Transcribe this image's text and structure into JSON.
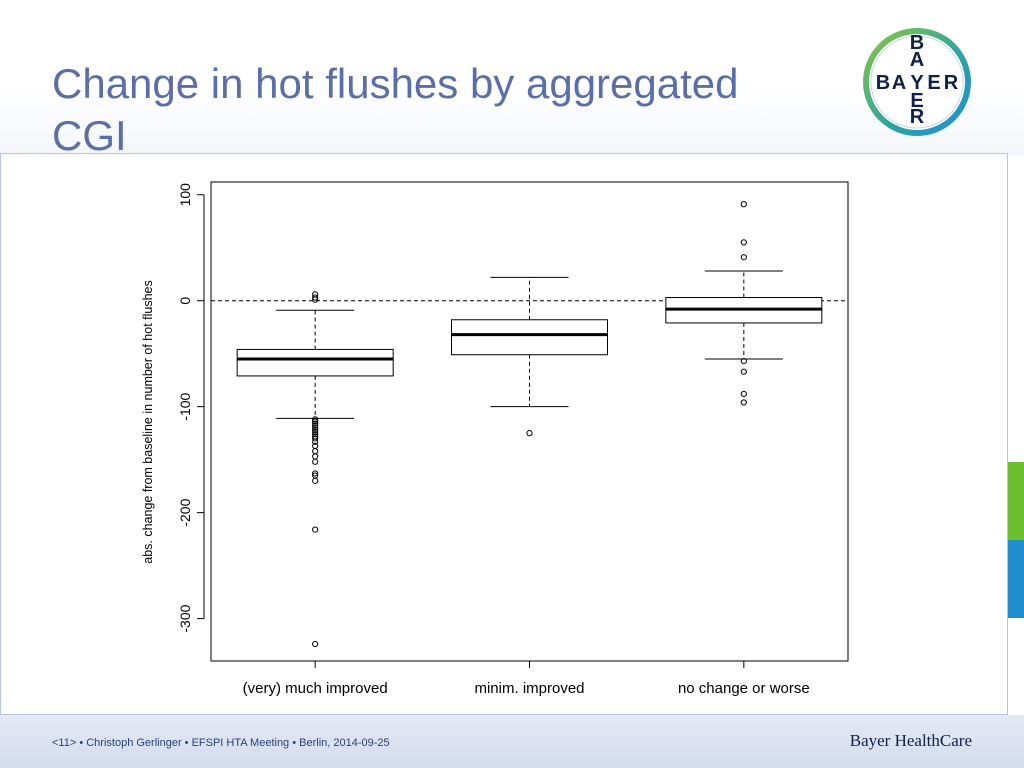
{
  "slide": {
    "title_lines": [
      "Change in hot flushes by aggregated",
      "CGI"
    ],
    "logo": {
      "letters_horizontal": "BAYER",
      "letters_vertical": "BAYER",
      "ring_colors": [
        "#8cc63f",
        "#1e8fcf"
      ]
    },
    "footer": {
      "citation": "<11> • Christoph Gerlinger • EFSPI HTA Meeting • Berlin, 2014-09-25",
      "brand": "Bayer HealthCare"
    },
    "accent_colors": {
      "title": "#5a6ea8",
      "green": "#6bbf2c",
      "blue": "#1f8ccc"
    }
  },
  "chart_data": {
    "type": "boxplot",
    "title": "",
    "xlabel": "",
    "ylabel": "abs. change from baseline in number of hot flushes",
    "ylim": [
      -340,
      112
    ],
    "yticks": [
      100,
      0,
      -100,
      -200,
      -300
    ],
    "reference_line": {
      "y": 0,
      "style": "dashed"
    },
    "categories": [
      "(very) much improved",
      "minim. improved",
      "no change or worse"
    ],
    "boxes": [
      {
        "category": "(very) much improved",
        "whisker_low": -111,
        "q1": -71,
        "median": -55,
        "q3": -46,
        "whisker_high": -9,
        "outliers": [
          6,
          3,
          1,
          -112,
          -114,
          -116,
          -118,
          -120,
          -122,
          -124,
          -126,
          -128,
          -130,
          -133,
          -137,
          -142,
          -147,
          -152,
          -163,
          -165,
          -170,
          -216,
          -324
        ]
      },
      {
        "category": "minim. improved",
        "whisker_low": -100,
        "q1": -51,
        "median": -32,
        "q3": -18,
        "whisker_high": 22,
        "outliers": [
          -125
        ]
      },
      {
        "category": "no change or worse",
        "whisker_low": -55,
        "q1": -21,
        "median": -8,
        "q3": 3,
        "whisker_high": 28,
        "outliers": [
          91,
          55,
          41,
          -57,
          -67,
          -88,
          -96
        ]
      }
    ]
  }
}
